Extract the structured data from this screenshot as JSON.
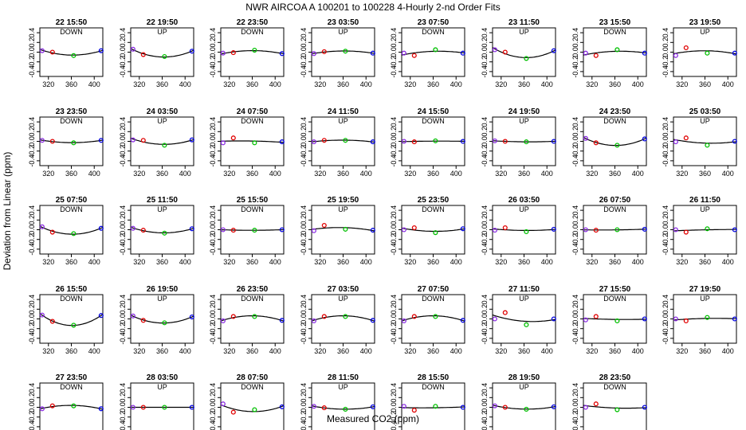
{
  "chart_data": {
    "type": "scatter",
    "title": "NWR   AIRCOA A   100201 to 100228   4-Hourly 2-nd Order Fits",
    "xlabel": "Measured CO2 (ppm)",
    "ylabel": "Deviation from Linear (ppm)",
    "xlim": [
      305,
      415
    ],
    "ylim": [
      -0.5,
      0.5
    ],
    "xticks": [
      320,
      360,
      400
    ],
    "xticklabels": [
      "320",
      "360",
      "400"
    ],
    "yticks": [
      -0.4,
      -0.2,
      0.0,
      0.2,
      0.4
    ],
    "yticklabels": [
      "-0.4",
      "-0.2",
      "0.0",
      "0.2",
      "0.4"
    ],
    "standard_x": [
      309,
      327,
      364,
      412
    ],
    "point_colors": [
      "#8a2be2",
      "#e00000",
      "#00c000",
      "#0000e0"
    ],
    "curve_color": "#000000",
    "panels": [
      {
        "time": "22 15:50",
        "direction": "DOWN",
        "y": [
          0.03,
          0.0,
          -0.07,
          0.03
        ]
      },
      {
        "time": "22 19:50",
        "direction": "UP",
        "y": [
          0.06,
          -0.05,
          -0.09,
          0.02
        ]
      },
      {
        "time": "22 23:50",
        "direction": "DOWN",
        "y": [
          -0.02,
          -0.01,
          0.04,
          -0.03
        ]
      },
      {
        "time": "23 03:50",
        "direction": "UP",
        "y": [
          -0.03,
          0.01,
          0.02,
          -0.02
        ]
      },
      {
        "time": "23 07:50",
        "direction": "DOWN",
        "y": [
          -0.02,
          -0.07,
          0.05,
          -0.02
        ]
      },
      {
        "time": "23 11:50",
        "direction": "UP",
        "y": [
          0.05,
          0.0,
          -0.13,
          0.03
        ]
      },
      {
        "time": "23 15:50",
        "direction": "DOWN",
        "y": [
          -0.02,
          -0.07,
          0.05,
          -0.02
        ]
      },
      {
        "time": "23 19:50",
        "direction": "UP",
        "y": [
          -0.07,
          0.09,
          -0.02,
          -0.02
        ]
      },
      {
        "time": "23 23:50",
        "direction": "DOWN",
        "y": [
          0.02,
          0.0,
          -0.03,
          0.02
        ]
      },
      {
        "time": "24 03:50",
        "direction": "UP",
        "y": [
          0.03,
          0.02,
          -0.08,
          0.03
        ]
      },
      {
        "time": "24 07:50",
        "direction": "DOWN",
        "y": [
          -0.03,
          0.07,
          -0.03,
          -0.01
        ]
      },
      {
        "time": "24 11:50",
        "direction": "UP",
        "y": [
          -0.01,
          0.02,
          0.02,
          -0.01
        ]
      },
      {
        "time": "24 15:50",
        "direction": "DOWN",
        "y": [
          0.0,
          -0.01,
          0.01,
          0.0
        ]
      },
      {
        "time": "24 19:50",
        "direction": "UP",
        "y": [
          0.01,
          0.0,
          -0.01,
          0.0
        ]
      },
      {
        "time": "24 23:50",
        "direction": "DOWN",
        "y": [
          0.06,
          -0.03,
          -0.08,
          0.05
        ]
      },
      {
        "time": "25 03:50",
        "direction": "UP",
        "y": [
          -0.01,
          0.07,
          -0.08,
          0.0
        ]
      },
      {
        "time": "25 07:50",
        "direction": "DOWN",
        "y": [
          0.06,
          -0.05,
          -0.08,
          0.03
        ]
      },
      {
        "time": "25 11:50",
        "direction": "UP",
        "y": [
          0.03,
          -0.01,
          -0.07,
          0.02
        ]
      },
      {
        "time": "25 15:50",
        "direction": "DOWN",
        "y": [
          0.0,
          -0.01,
          -0.01,
          0.0
        ]
      },
      {
        "time": "25 19:50",
        "direction": "UP",
        "y": [
          -0.02,
          0.09,
          0.01,
          -0.01
        ]
      },
      {
        "time": "25 23:50",
        "direction": "DOWN",
        "y": [
          0.0,
          0.04,
          -0.06,
          0.02
        ]
      },
      {
        "time": "26 03:50",
        "direction": "UP",
        "y": [
          -0.01,
          0.04,
          -0.04,
          0.01
        ]
      },
      {
        "time": "26 07:50",
        "direction": "DOWN",
        "y": [
          0.0,
          -0.01,
          0.0,
          0.01
        ]
      },
      {
        "time": "26 11:50",
        "direction": "UP",
        "y": [
          0.0,
          -0.05,
          0.02,
          0.0
        ]
      },
      {
        "time": "26 15:50",
        "direction": "DOWN",
        "y": [
          0.08,
          -0.05,
          -0.13,
          0.07
        ]
      },
      {
        "time": "26 19:50",
        "direction": "UP",
        "y": [
          0.06,
          -0.03,
          -0.08,
          0.04
        ]
      },
      {
        "time": "26 23:50",
        "direction": "DOWN",
        "y": [
          -0.04,
          0.05,
          0.05,
          -0.03
        ]
      },
      {
        "time": "27 03:50",
        "direction": "UP",
        "y": [
          -0.04,
          0.05,
          0.05,
          -0.03
        ]
      },
      {
        "time": "27 07:50",
        "direction": "DOWN",
        "y": [
          -0.04,
          0.05,
          0.05,
          -0.03
        ]
      },
      {
        "time": "27 11:50",
        "direction": "UP",
        "y": [
          0.0,
          0.13,
          -0.12,
          0.0
        ]
      },
      {
        "time": "27 15:50",
        "direction": "DOWN",
        "y": [
          -0.02,
          0.05,
          -0.04,
          0.0
        ]
      },
      {
        "time": "27 19:50",
        "direction": "UP",
        "y": [
          0.0,
          -0.04,
          0.03,
          0.0
        ]
      },
      {
        "time": "27 23:50",
        "direction": "DOWN",
        "y": [
          -0.03,
          0.03,
          0.03,
          -0.03
        ]
      },
      {
        "time": "28 03:50",
        "direction": "UP",
        "y": [
          0.0,
          0.0,
          0.0,
          0.0
        ]
      },
      {
        "time": "28 07:50",
        "direction": "DOWN",
        "y": [
          0.07,
          -0.1,
          -0.05,
          0.01
        ]
      },
      {
        "time": "28 11:50",
        "direction": "UP",
        "y": [
          0.02,
          -0.01,
          -0.04,
          0.01
        ]
      },
      {
        "time": "28 15:50",
        "direction": "DOWN",
        "y": [
          0.02,
          -0.06,
          0.02,
          0.0
        ]
      },
      {
        "time": "28 19:50",
        "direction": "UP",
        "y": [
          0.03,
          0.0,
          -0.04,
          0.01
        ]
      },
      {
        "time": "28 23:50",
        "direction": "DOWN",
        "y": [
          0.0,
          0.07,
          -0.05,
          0.0
        ]
      }
    ]
  }
}
